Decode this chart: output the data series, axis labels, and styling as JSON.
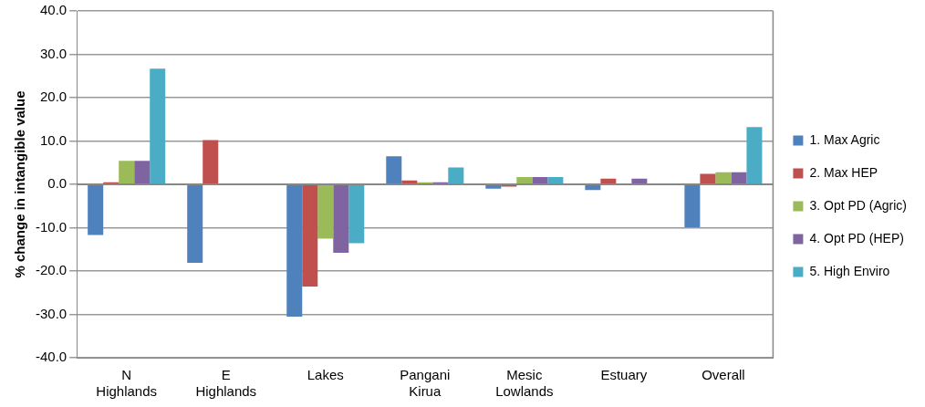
{
  "chart_data": {
    "type": "bar",
    "ylabel": "% change in intangible value",
    "categories": [
      "N Highlands",
      "E Highlands",
      "Lakes",
      "Pangani Kirua",
      "Mesic Lowlands",
      "Estuary",
      "Overall"
    ],
    "series": [
      {
        "name": "1. Max Agric",
        "color": "#4f81bd",
        "values": [
          -11.7,
          -18.1,
          -30.5,
          6.5,
          -1.0,
          -1.3,
          -9.9
        ]
      },
      {
        "name": "2. Max HEP",
        "color": "#c0504d",
        "values": [
          0.5,
          10.2,
          -23.6,
          0.9,
          -0.5,
          1.3,
          2.4
        ]
      },
      {
        "name": "3. Opt PD (Agric)",
        "color": "#9bbb59",
        "values": [
          5.4,
          0,
          -12.5,
          0.5,
          1.7,
          0,
          2.8
        ]
      },
      {
        "name": "4. Opt PD (HEP)",
        "color": "#8064a2",
        "values": [
          5.4,
          0,
          -15.8,
          0.5,
          1.7,
          1.3,
          2.8
        ]
      },
      {
        "name": "5. High Enviro",
        "color": "#4bacc6",
        "values": [
          26.7,
          0,
          -13.6,
          3.9,
          1.7,
          0,
          13.2
        ]
      }
    ],
    "ylim": [
      -40,
      40
    ],
    "yticks": [
      {
        "value": -40,
        "label": "-40.0"
      },
      {
        "value": -30,
        "label": "-30.0"
      },
      {
        "value": -20,
        "label": "-20.0"
      },
      {
        "value": -10,
        "label": "-10.0"
      },
      {
        "value": 0,
        "label": "0.0"
      },
      {
        "value": 10,
        "label": "10.0"
      },
      {
        "value": 20,
        "label": "20.0"
      },
      {
        "value": 30,
        "label": "30.0"
      },
      {
        "value": 40,
        "label": "40.0"
      }
    ],
    "grid": "y",
    "legend": "right"
  }
}
